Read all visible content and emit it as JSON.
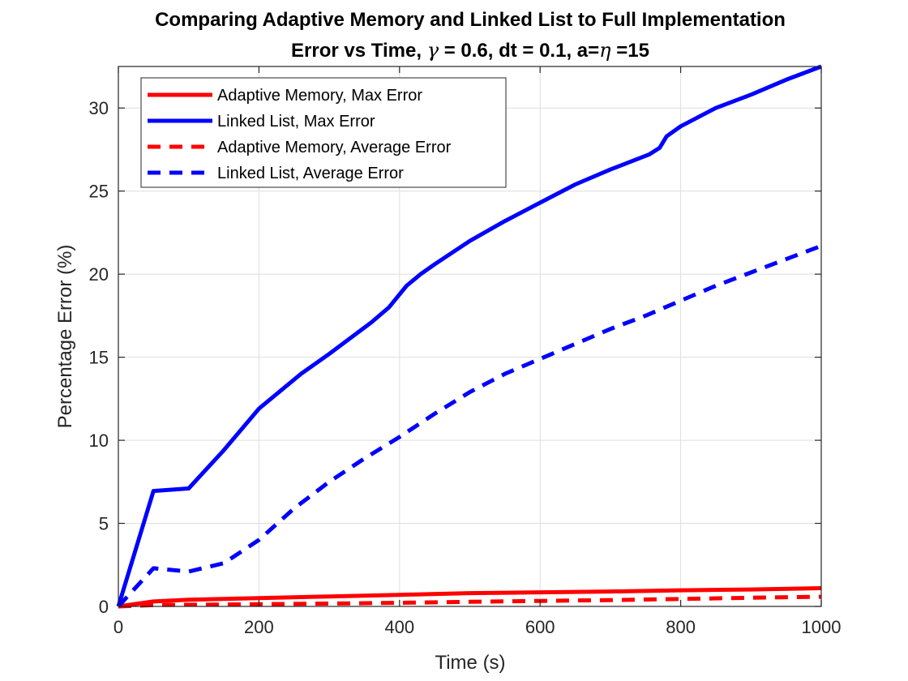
{
  "chart_data": {
    "type": "line",
    "title_line1": "Comparing Adaptive Memory and Linked List to Full Implementation",
    "title_line2": {
      "prefix": "Error vs Time, ",
      "gamma_symbol": "γ",
      "gamma_part": " = 0.6, dt = 0.1, a=",
      "eta_symbol": "η",
      "suffix": " =15"
    },
    "xlabel": "Time (s)",
    "ylabel": "Percentage Error (%)",
    "xlim": [
      0,
      1000
    ],
    "ylim": [
      0,
      32.5
    ],
    "xticks": [
      0,
      200,
      400,
      600,
      800,
      1000
    ],
    "yticks": [
      0,
      5,
      10,
      15,
      20,
      25,
      30
    ],
    "grid": true,
    "legend_position": "top-left",
    "series": [
      {
        "name": "Adaptive Memory, Max Error",
        "color": "#ff0000",
        "style": "solid",
        "x": [
          0,
          50,
          100,
          200,
          300,
          400,
          500,
          600,
          700,
          800,
          900,
          1000
        ],
        "y": [
          0,
          0.3,
          0.4,
          0.5,
          0.6,
          0.7,
          0.8,
          0.85,
          0.9,
          0.97,
          1.02,
          1.1
        ]
      },
      {
        "name": "Linked List, Max Error",
        "color": "#0000ff",
        "style": "solid",
        "x": [
          0,
          50,
          100,
          150,
          200,
          260,
          300,
          360,
          385,
          410,
          430,
          450,
          500,
          550,
          600,
          650,
          700,
          755,
          770,
          780,
          800,
          850,
          900,
          950,
          1000
        ],
        "y": [
          0,
          6.95,
          7.1,
          9.4,
          11.9,
          14.0,
          15.2,
          17.1,
          18.0,
          19.3,
          20.0,
          20.6,
          22.0,
          23.2,
          24.3,
          25.4,
          26.3,
          27.2,
          27.6,
          28.3,
          28.9,
          30.0,
          30.8,
          31.7,
          32.5
        ]
      },
      {
        "name": "Adaptive Memory, Average Error",
        "color": "#ff0000",
        "style": "dashed",
        "x": [
          0,
          50,
          100,
          200,
          300,
          400,
          500,
          600,
          700,
          800,
          900,
          1000
        ],
        "y": [
          0,
          0.08,
          0.1,
          0.13,
          0.17,
          0.22,
          0.28,
          0.33,
          0.38,
          0.45,
          0.52,
          0.58
        ]
      },
      {
        "name": "Linked List, Average Error",
        "color": "#0000ff",
        "style": "dashed",
        "x": [
          0,
          50,
          100,
          150,
          200,
          250,
          300,
          350,
          400,
          450,
          500,
          550,
          600,
          650,
          700,
          750,
          800,
          850,
          900,
          950,
          1000
        ],
        "y": [
          0,
          2.3,
          2.1,
          2.6,
          4.0,
          5.9,
          7.5,
          8.9,
          10.2,
          11.6,
          12.9,
          14.0,
          14.9,
          15.8,
          16.7,
          17.5,
          18.4,
          19.3,
          20.1,
          20.9,
          21.7
        ]
      }
    ]
  }
}
